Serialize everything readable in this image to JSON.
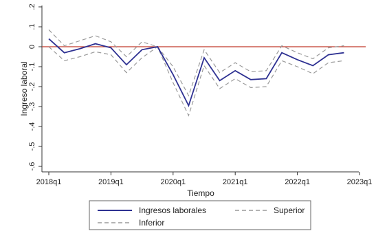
{
  "chart_data": {
    "type": "line",
    "xlabel": "Tiempo",
    "ylabel": "Ingreso laboral",
    "xticks": [
      "2018q1",
      "2019q1",
      "2020q1",
      "2021q1",
      "2022q1",
      "2023q1"
    ],
    "yticks": [
      ".2",
      ".1",
      "0",
      "-.1",
      "-.2",
      "-.3",
      "-.4",
      "-.5",
      "-.6"
    ],
    "ylim": [
      -0.62,
      0.22
    ],
    "x": [
      "2018q1",
      "2018q2",
      "2018q3",
      "2018q4",
      "2019q1",
      "2019q2",
      "2019q3",
      "2019q4",
      "2020q1",
      "2020q2",
      "2020q3",
      "2020q4",
      "2021q1",
      "2021q2",
      "2021q3",
      "2021q4",
      "2022q1",
      "2022q2",
      "2022q3",
      "2022q4"
    ],
    "reference_line": {
      "y": 0,
      "color": "#c0392b"
    },
    "series": [
      {
        "name": "Ingresos laborales",
        "style": "solid",
        "color": "#2e3192",
        "values": [
          0.04,
          -0.03,
          -0.01,
          0.015,
          -0.005,
          -0.09,
          -0.015,
          0.0,
          -0.14,
          -0.295,
          -0.055,
          -0.17,
          -0.12,
          -0.165,
          -0.16,
          -0.03,
          -0.065,
          -0.095,
          -0.04,
          -0.03
        ]
      },
      {
        "name": "Superior",
        "style": "dashed",
        "color": "#9a9a9a",
        "values": [
          0.085,
          0.005,
          0.03,
          0.055,
          0.025,
          -0.05,
          0.025,
          0.0,
          -0.1,
          -0.245,
          -0.015,
          -0.13,
          -0.08,
          -0.125,
          -0.12,
          0.005,
          -0.03,
          -0.06,
          -0.005,
          0.005
        ]
      },
      {
        "name": "Inferior",
        "style": "dashed",
        "color": "#9a9a9a",
        "values": [
          0.0,
          -0.07,
          -0.05,
          -0.025,
          -0.04,
          -0.13,
          -0.055,
          0.0,
          -0.18,
          -0.345,
          -0.095,
          -0.21,
          -0.16,
          -0.205,
          -0.2,
          -0.07,
          -0.1,
          -0.135,
          -0.08,
          -0.07
        ]
      }
    ],
    "legend": {
      "placement": "bottom",
      "entries": [
        "Ingresos laborales",
        "Superior",
        "Inferior"
      ]
    },
    "grid": false
  }
}
